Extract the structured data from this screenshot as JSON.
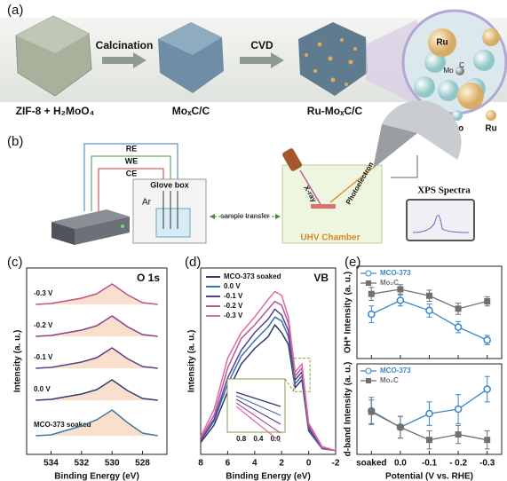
{
  "panel_labels": [
    "(a)",
    "(b)",
    "(c)",
    "(d)",
    "(e)"
  ],
  "panel_a": {
    "steps": [
      "Calcination",
      "CVD"
    ],
    "captions": [
      "ZIF-8 + H₂MoO₄",
      "MoₓC/C",
      "Ru-MoₓC/C"
    ],
    "zoom_labels": [
      "Ru",
      "Mo",
      "C"
    ],
    "legend": [
      "C",
      "Mo",
      "Ru"
    ]
  },
  "panel_b": {
    "electrodes": [
      "RE",
      "WE",
      "CE"
    ],
    "glove_box": "Glove box",
    "gas": "Ar",
    "transfer": "sample transfer",
    "xray": "X-ray",
    "photoelectron": "Photoelectron",
    "chamber": "UHV Chamber",
    "spectra": "XPS Spectra"
  },
  "chart_data": [
    {
      "type": "line",
      "title": "O 1s",
      "xlabel": "Binding Energy (eV)",
      "ylabel": "Intensity (a. u.)",
      "xlim": [
        535.6,
        526.4
      ],
      "xticks": [
        534,
        532,
        530,
        528
      ],
      "ylim": [
        0,
        10.5
      ],
      "label_series": true,
      "x": [
        535,
        534,
        533,
        532,
        531,
        530,
        529,
        528,
        527
      ],
      "series": [
        {
          "name": "-0.3 V",
          "color": "#c0508a",
          "values": [
            8.45,
            8.5,
            8.65,
            8.8,
            9.05,
            9.6,
            9.0,
            8.55,
            8.45
          ]
        },
        {
          "name": "-0.2 V",
          "color": "#8a3f8c",
          "values": [
            6.65,
            6.7,
            6.85,
            7.0,
            7.25,
            7.8,
            7.2,
            6.75,
            6.65
          ]
        },
        {
          "name": "-0.1 V",
          "color": "#5b3f8a",
          "values": [
            4.85,
            4.9,
            5.05,
            5.2,
            5.45,
            6.0,
            5.4,
            4.95,
            4.85
          ]
        },
        {
          "name": "0.0 V",
          "color": "#2f3f75",
          "values": [
            3.05,
            3.1,
            3.25,
            3.4,
            3.65,
            4.2,
            3.6,
            3.15,
            3.05
          ]
        },
        {
          "name": "MCO-373 soaked",
          "color": "#3a7ca5",
          "values": [
            1.05,
            1.1,
            1.35,
            1.6,
            1.95,
            2.5,
            1.8,
            1.2,
            1.05
          ]
        }
      ]
    },
    {
      "type": "line",
      "title": "VB",
      "xlabel": "Binding Energy (eV)",
      "ylabel": "Intensity (a. u.)",
      "xlim": [
        8,
        -2
      ],
      "xticks": [
        8,
        6,
        4,
        2,
        0,
        -2
      ],
      "ylim": [
        0,
        9.5
      ],
      "legend": "upper-left",
      "inset_xticks": [
        0.8,
        0.4,
        {
          "value": 0,
          "label": "0.0"
        }
      ],
      "x": [
        8,
        7,
        6,
        5,
        4,
        3,
        2.5,
        2,
        1.5,
        1,
        0.5,
        0,
        -1,
        -2
      ],
      "series": [
        {
          "name": "MCO-373 soaked",
          "color": "#2b3a67",
          "values": [
            0.6,
            1.5,
            3.2,
            4.6,
            5.4,
            6.0,
            6.6,
            6.2,
            5.6,
            3.4,
            3.8,
            1.2,
            0.3,
            0.2
          ]
        },
        {
          "name": "0.0 V",
          "color": "#3b6fb6",
          "values": [
            0.7,
            1.7,
            3.6,
            5.0,
            5.8,
            6.5,
            7.0,
            6.8,
            6.0,
            3.6,
            4.0,
            1.3,
            0.3,
            0.2
          ]
        },
        {
          "name": "-0.1 V",
          "color": "#5c3f90",
          "values": [
            0.7,
            1.8,
            3.9,
            5.3,
            6.2,
            6.9,
            7.4,
            7.1,
            6.3,
            3.8,
            4.2,
            1.4,
            0.3,
            0.2
          ]
        },
        {
          "name": "-0.2 V",
          "color": "#b4589e",
          "values": [
            0.8,
            2.0,
            4.4,
            5.9,
            6.6,
            7.4,
            7.8,
            7.6,
            6.7,
            4.0,
            4.4,
            1.5,
            0.35,
            0.2
          ]
        },
        {
          "name": "-0.3 V",
          "color": "#e06ba0",
          "values": [
            0.9,
            2.3,
            4.9,
            6.2,
            7.0,
            7.9,
            8.3,
            8.1,
            7.0,
            4.2,
            4.6,
            1.6,
            0.4,
            0.2
          ]
        }
      ]
    },
    {
      "type": "errorbar",
      "ylabel": "OH* Intensity (a. u.)",
      "ylim": [
        0,
        10
      ],
      "legend": "upper-left",
      "series": [
        {
          "name": "MCO-373",
          "color": "#3a86c8",
          "marker": "circle",
          "values": [
            4.8,
            6.3,
            5.2,
            3.4,
            2.0
          ],
          "errors": [
            0.9,
            0.6,
            0.7,
            0.6,
            0.5
          ]
        },
        {
          "name": "Mo₂C",
          "color": "#707070",
          "marker": "square",
          "values": [
            7.0,
            7.5,
            6.8,
            5.4,
            6.2
          ],
          "errors": [
            0.7,
            0.5,
            0.6,
            0.6,
            0.5
          ]
        }
      ]
    },
    {
      "type": "errorbar",
      "ylabel": "d-band Intensity (a. u.)",
      "xlabel": "Potential (V vs. RHE)",
      "ylim": [
        0,
        10
      ],
      "legend": "upper-left",
      "categories": [
        "soaked",
        "0.0",
        "-0.1",
        "- 0.2",
        "-0.3"
      ],
      "series": [
        {
          "name": "MCO-373",
          "color": "#3a86c8",
          "marker": "circle",
          "values": [
            4.8,
            3.0,
            4.5,
            5.0,
            7.2
          ],
          "errors": [
            1.5,
            1.2,
            1.3,
            1.6,
            1.4
          ]
        },
        {
          "name": "Mo₂C",
          "color": "#707070",
          "marker": "square",
          "values": [
            4.7,
            3.0,
            1.6,
            2.2,
            1.6
          ],
          "errors": [
            1.3,
            1.2,
            1.0,
            1.0,
            1.0
          ]
        }
      ]
    }
  ]
}
